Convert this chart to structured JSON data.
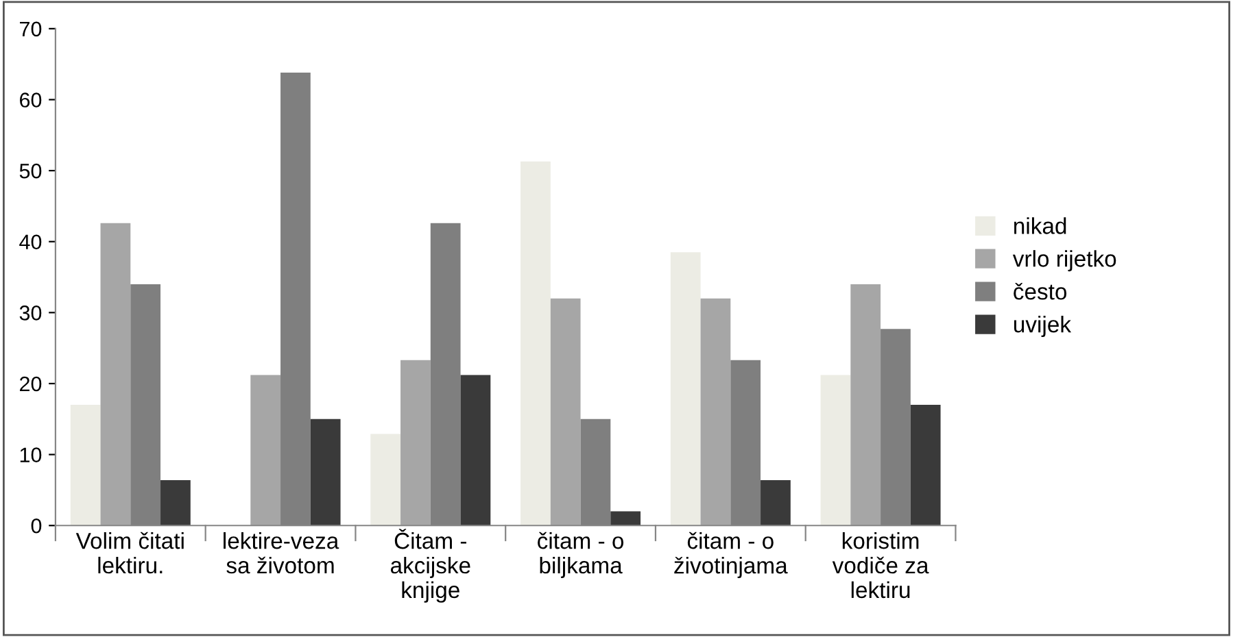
{
  "chart_data": {
    "type": "bar",
    "categories": [
      "Volim čitati\nlektiru.",
      "lektire-veza\nsa životom",
      "Čitam -\nakcijske\nknjige",
      "čitam - o\nbiljkama",
      "čitam - o\nživotinjama",
      "koristim\nvodiče za\nlektiru"
    ],
    "series": [
      {
        "name": "nikad",
        "color": "#ecece4",
        "values": [
          17,
          0,
          12.9,
          51.3,
          38.5,
          21.2
        ]
      },
      {
        "name": "vrlo rijetko",
        "color": "#a6a6a6",
        "values": [
          42.6,
          21.2,
          23.3,
          32,
          32,
          34
        ]
      },
      {
        "name": "često",
        "color": "#7f7f7f",
        "values": [
          34,
          63.8,
          42.6,
          15,
          23.3,
          27.7
        ]
      },
      {
        "name": "uvijek",
        "color": "#3a3a3a",
        "values": [
          6.4,
          15,
          21.2,
          2,
          6.4,
          17
        ]
      }
    ],
    "ylim": [
      0,
      70
    ],
    "yticks": [
      0,
      10,
      20,
      30,
      40,
      50,
      60,
      70
    ],
    "grid": false,
    "legend": "right"
  }
}
